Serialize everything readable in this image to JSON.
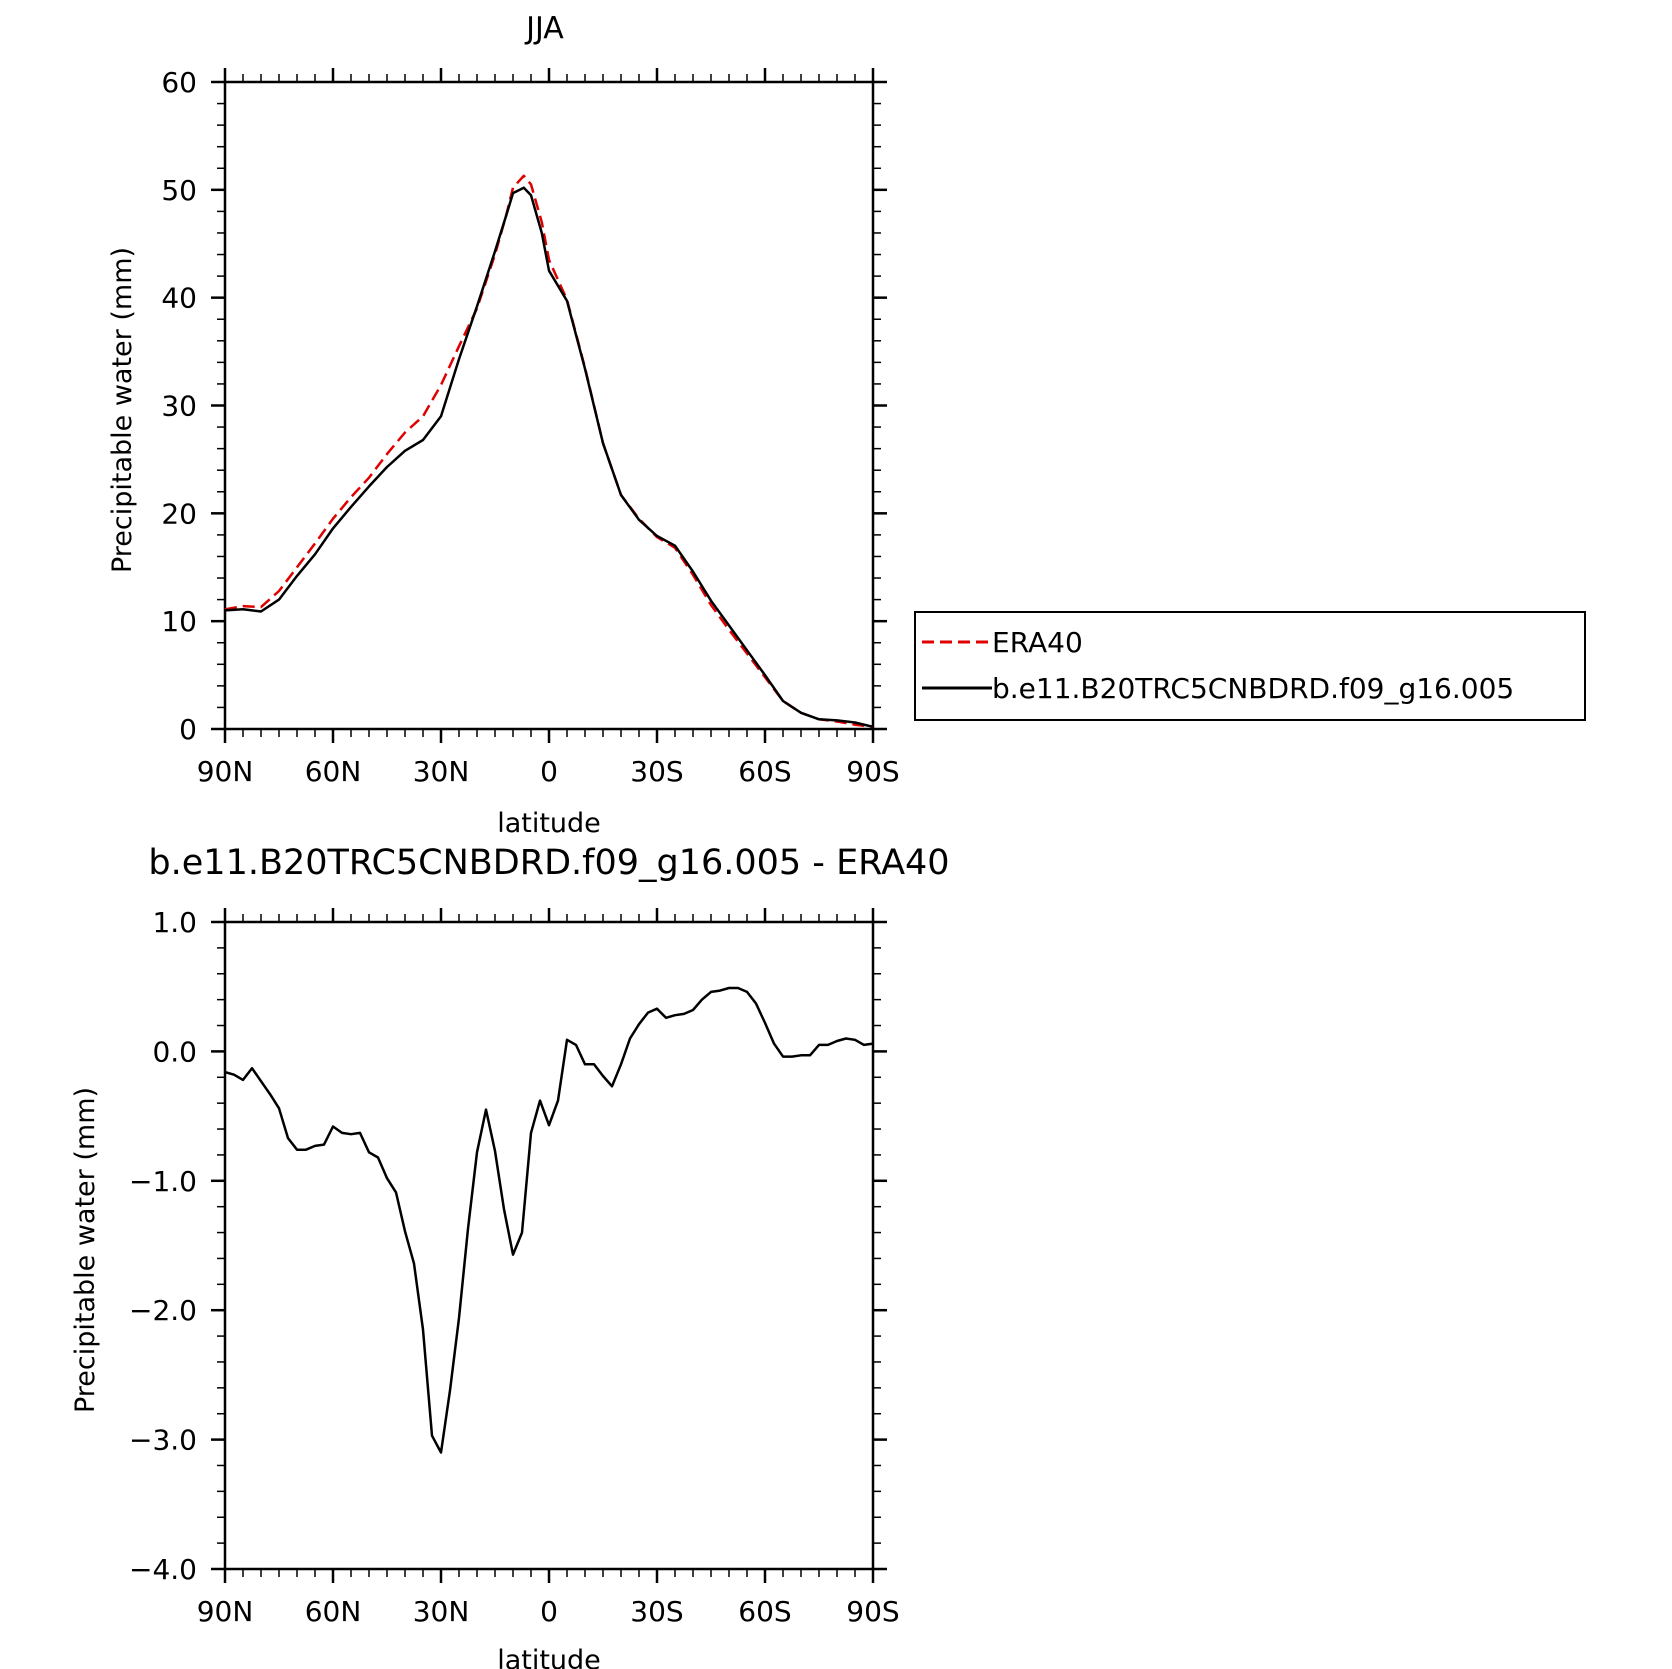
{
  "chart_data": [
    {
      "type": "line",
      "title": "JJA",
      "xlabel": "latitude",
      "ylabel": "Precipitable water (mm)",
      "xlim": [
        90,
        -90
      ],
      "ylim": [
        0,
        60
      ],
      "xticks": [
        {
          "value": 90,
          "label": "90N"
        },
        {
          "value": 60,
          "label": "60N"
        },
        {
          "value": 30,
          "label": "30N"
        },
        {
          "value": 0,
          "label": "0"
        },
        {
          "value": -30,
          "label": "30S"
        },
        {
          "value": -60,
          "label": "60S"
        },
        {
          "value": -90,
          "label": "90S"
        }
      ],
      "yticks": [
        {
          "value": 0,
          "label": "0"
        },
        {
          "value": 10,
          "label": "10"
        },
        {
          "value": 20,
          "label": "20"
        },
        {
          "value": 30,
          "label": "30"
        },
        {
          "value": 40,
          "label": "40"
        },
        {
          "value": 50,
          "label": "50"
        },
        {
          "value": 60,
          "label": "60"
        }
      ],
      "legend": {
        "placement": "right"
      },
      "series": [
        {
          "name": "ERA40",
          "color": "#e00000",
          "dash": true,
          "x": [
            90,
            85,
            80,
            75,
            70,
            65,
            60,
            55,
            50,
            45,
            40,
            35,
            30,
            25,
            20,
            15,
            12,
            10,
            7,
            5,
            2,
            0,
            -5,
            -10,
            -15,
            -20,
            -25,
            -30,
            -35,
            -40,
            -45,
            -50,
            -55,
            -60,
            -65,
            -70,
            -75,
            -80,
            -85,
            -90
          ],
          "y": [
            11.1,
            11.4,
            11.3,
            12.8,
            15.0,
            17.2,
            19.5,
            21.5,
            23.3,
            25.5,
            27.5,
            29.0,
            31.9,
            35.5,
            39.0,
            44.0,
            47.5,
            50.2,
            51.3,
            50.5,
            47.0,
            43.5,
            39.8,
            33.5,
            26.5,
            21.7,
            19.5,
            17.8,
            16.8,
            14.3,
            11.5,
            9.2,
            7.0,
            4.8,
            2.6,
            1.5,
            0.9,
            0.7,
            0.4,
            0.2
          ]
        },
        {
          "name": "b.e11.B20TRC5CNBDRD.f09_g16.005",
          "color": "#000000",
          "dash": false,
          "x": [
            90,
            85,
            80,
            75,
            70,
            65,
            60,
            55,
            50,
            45,
            40,
            35,
            30,
            25,
            20,
            15,
            12,
            10,
            7,
            5,
            2,
            0,
            -5,
            -10,
            -15,
            -20,
            -25,
            -30,
            -35,
            -40,
            -45,
            -50,
            -55,
            -60,
            -65,
            -70,
            -75,
            -80,
            -85,
            -90
          ],
          "y": [
            11.0,
            11.1,
            10.9,
            12.0,
            14.2,
            16.2,
            18.6,
            20.6,
            22.5,
            24.3,
            25.8,
            26.8,
            29.0,
            34.3,
            39.2,
            44.3,
            47.5,
            49.7,
            50.2,
            49.5,
            46.0,
            42.5,
            39.7,
            33.4,
            26.5,
            21.7,
            19.4,
            17.9,
            17.0,
            14.6,
            11.9,
            9.6,
            7.3,
            5.0,
            2.6,
            1.5,
            0.9,
            0.8,
            0.6,
            0.2
          ]
        }
      ]
    },
    {
      "type": "line",
      "title": "b.e11.B20TRC5CNBDRD.f09_g16.005 - ERA40",
      "xlabel": "latitude",
      "ylabel": "Precipitable water (mm)",
      "xlim": [
        90,
        -90
      ],
      "ylim": [
        -4.0,
        1.0
      ],
      "xticks": [
        {
          "value": 90,
          "label": "90N"
        },
        {
          "value": 60,
          "label": "60N"
        },
        {
          "value": 30,
          "label": "30N"
        },
        {
          "value": 0,
          "label": "0"
        },
        {
          "value": -30,
          "label": "30S"
        },
        {
          "value": -60,
          "label": "60S"
        },
        {
          "value": -90,
          "label": "90S"
        }
      ],
      "yticks": [
        {
          "value": 1.0,
          "label": "1.0"
        },
        {
          "value": 0.0,
          "label": "0.0"
        },
        {
          "value": -1.0,
          "label": "−1.0"
        },
        {
          "value": -2.0,
          "label": "−2.0"
        },
        {
          "value": -3.0,
          "label": "−3.0"
        },
        {
          "value": -4.0,
          "label": "−4.0"
        }
      ],
      "series": [
        {
          "color": "#000000",
          "dash": false,
          "x": [
            90,
            87.5,
            85,
            82.5,
            80,
            77.5,
            75,
            72.5,
            70,
            67.5,
            65,
            62.5,
            60,
            57.5,
            55,
            52.5,
            50,
            47.5,
            45,
            42.5,
            40,
            37.5,
            35,
            32.5,
            30,
            27.5,
            25,
            22.5,
            20,
            17.5,
            15,
            12.5,
            10,
            7.5,
            5,
            2.5,
            0,
            -2.5,
            -5,
            -7.5,
            -10,
            -12.5,
            -15,
            -17.5,
            -20,
            -22.5,
            -25,
            -27.5,
            -30,
            -32.5,
            -35,
            -37.5,
            -40,
            -42.5,
            -45,
            -47.5,
            -50,
            -52.5,
            -55,
            -57.5,
            -60,
            -62.5,
            -65,
            -67.5,
            -70,
            -72.5,
            -75,
            -77.5,
            -80,
            -82.5,
            -85,
            -87.5,
            -90
          ],
          "y": [
            -0.16,
            -0.18,
            -0.22,
            -0.13,
            -0.23,
            -0.33,
            -0.44,
            -0.67,
            -0.76,
            -0.76,
            -0.73,
            -0.72,
            -0.58,
            -0.63,
            -0.64,
            -0.63,
            -0.78,
            -0.82,
            -0.98,
            -1.09,
            -1.39,
            -1.64,
            -2.15,
            -2.97,
            -3.1,
            -2.62,
            -2.06,
            -1.37,
            -0.78,
            -0.45,
            -0.77,
            -1.22,
            -1.57,
            -1.4,
            -0.63,
            -0.38,
            -0.57,
            -0.38,
            0.09,
            0.05,
            -0.1,
            -0.1,
            -0.19,
            -0.27,
            -0.1,
            0.1,
            0.21,
            0.3,
            0.33,
            0.26,
            0.28,
            0.29,
            0.32,
            0.4,
            0.46,
            0.47,
            0.49,
            0.49,
            0.46,
            0.37,
            0.22,
            0.06,
            -0.04,
            -0.04,
            -0.03,
            -0.03,
            0.05,
            0.05,
            0.08,
            0.1,
            0.09,
            0.05,
            0.06
          ]
        }
      ]
    }
  ]
}
